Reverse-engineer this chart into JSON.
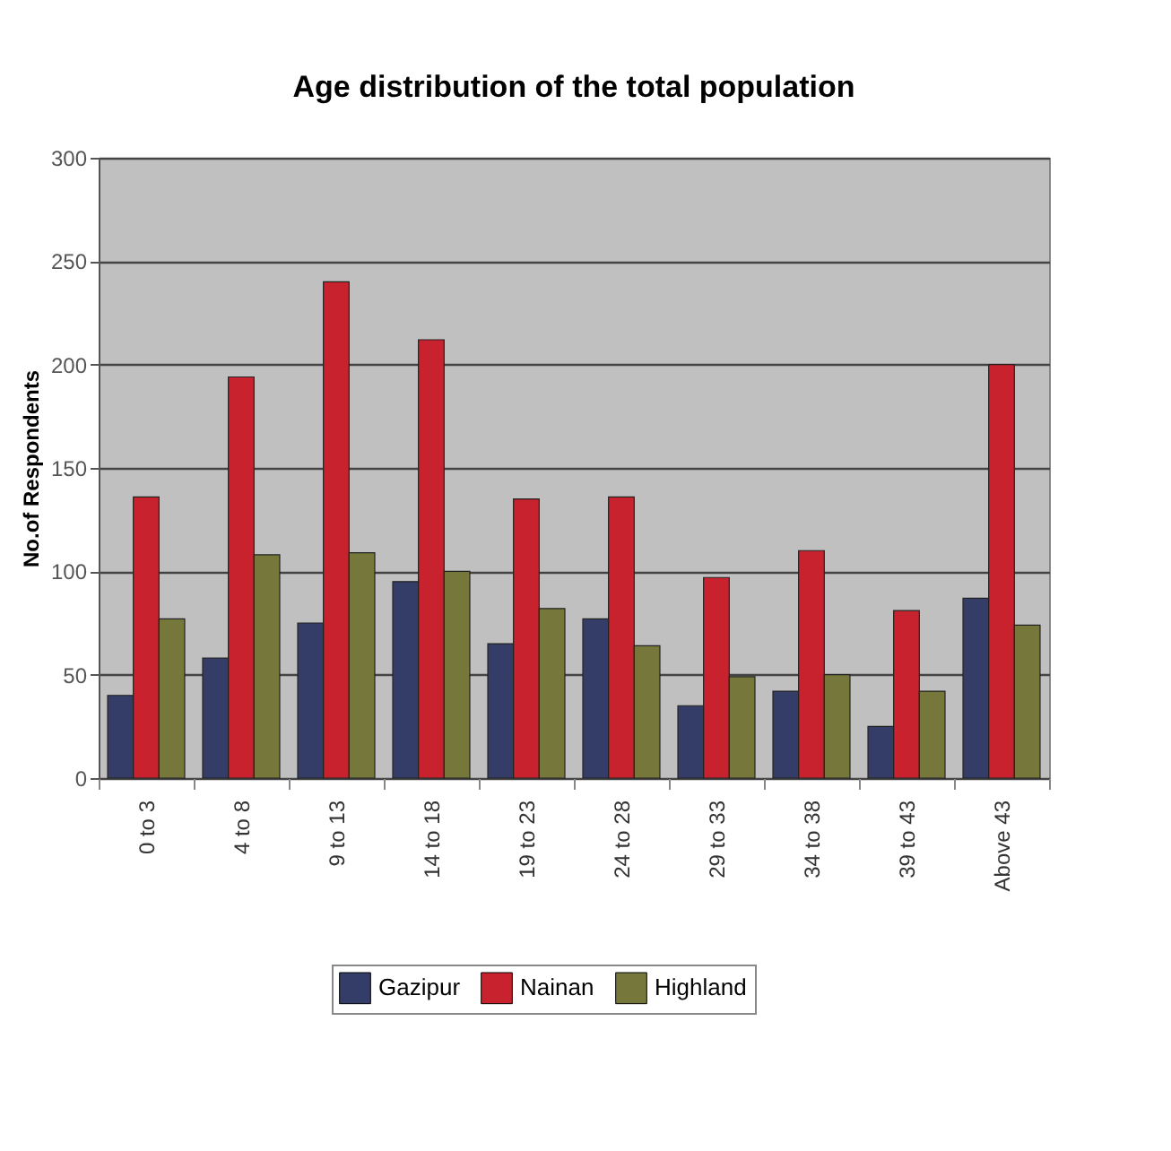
{
  "chart_data": {
    "type": "bar",
    "title": "Age distribution of the total population",
    "ylabel": "No.of Respondents",
    "categories": [
      "0 to 3",
      "4 to 8",
      "9 to 13",
      "14 to 18",
      "19 to 23",
      "24 to 28",
      "29 to 33",
      "34 to 38",
      "39 to 43",
      "Above 43"
    ],
    "series": [
      {
        "name": "Gazipur",
        "color": "#343d68",
        "values": [
          40,
          58,
          75,
          95,
          65,
          77,
          35,
          42,
          25,
          87
        ]
      },
      {
        "name": "Nainan",
        "color": "#c8222e",
        "values": [
          136,
          194,
          240,
          212,
          135,
          136,
          97,
          110,
          81,
          200
        ]
      },
      {
        "name": "Highland",
        "color": "#76773a",
        "values": [
          77,
          108,
          109,
          100,
          82,
          64,
          49,
          50,
          42,
          74
        ]
      }
    ],
    "ylim": [
      0,
      300
    ],
    "yticks": [
      0,
      50,
      100,
      150,
      200,
      250,
      300
    ],
    "grid": "y",
    "legend": "bottom"
  }
}
